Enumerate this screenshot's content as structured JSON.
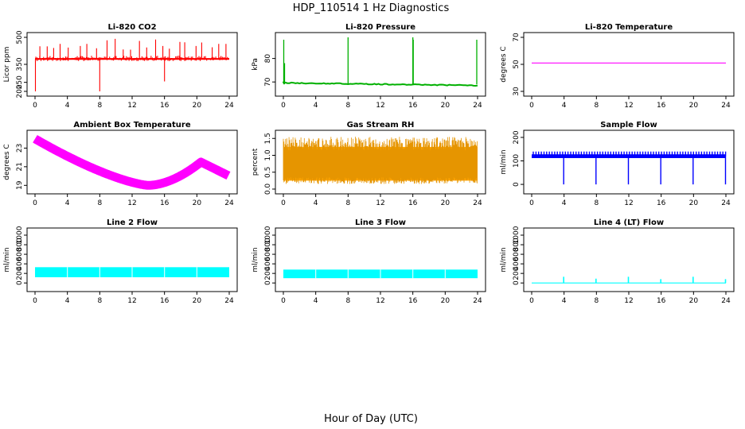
{
  "page": {
    "title": "HDP_110514  1 Hz Diagnostics",
    "xlabel": "Hour of Day (UTC)"
  },
  "chart_data": [
    {
      "type": "line",
      "title": "Li-820 CO2",
      "ylabel": "Licor ppm",
      "color": "#ff0000",
      "xlim": [
        0,
        24
      ],
      "xticks": [
        0,
        4,
        8,
        12,
        16,
        20,
        24
      ],
      "ylim": [
        200,
        500
      ],
      "yticks": [
        200,
        250,
        350,
        500
      ],
      "ytick_labels": [
        "200",
        "250",
        "350",
        "500"
      ],
      "pattern": "co2",
      "series_desc": "baseline ~380 ppm with periodic spikes to ~490 and dips to ~200 at 0, 8, 16 h"
    },
    {
      "type": "line",
      "title": "Li-820 Pressure",
      "ylabel": "kPa",
      "color": "#00b000",
      "xlim": [
        0,
        24
      ],
      "xticks": [
        0,
        4,
        8,
        12,
        16,
        20,
        24
      ],
      "ylim": [
        66,
        89
      ],
      "yticks": [
        70,
        80
      ],
      "ytick_labels": [
        "70",
        "80"
      ],
      "pattern": "pressure",
      "series_desc": "slow decline ~69.5 to ~68.5 kPa with spikes to ~88 at 0, 8, 16, 24 h"
    },
    {
      "type": "line",
      "title": "Li-820 Temperature",
      "ylabel": "degrees C",
      "color": "#ff00ff",
      "xlim": [
        0,
        24
      ],
      "xticks": [
        0,
        4,
        8,
        12,
        16,
        20,
        24
      ],
      "ylim": [
        30,
        70
      ],
      "yticks": [
        30,
        50,
        70
      ],
      "ytick_labels": [
        "30",
        "50",
        "70"
      ],
      "pattern": "flat",
      "value": 51
    },
    {
      "type": "line",
      "title": "Ambient Box Temperature",
      "ylabel": "degrees C",
      "color": "#ff00ff",
      "xlim": [
        0,
        24
      ],
      "xticks": [
        0,
        4,
        8,
        12,
        16,
        20,
        24
      ],
      "ylim": [
        18.6,
        24.4
      ],
      "yticks": [
        19,
        21,
        23
      ],
      "ytick_labels": [
        "19",
        "21",
        "23"
      ],
      "pattern": "ambient",
      "series_desc": "24 at 0 h, falling to 19 near 14 h, peak 21.5 near 20.5 h, 20 at 24 h"
    },
    {
      "type": "line",
      "title": "Gas Stream RH",
      "ylabel": "percent",
      "color": "#ffa500",
      "xlim": [
        0,
        24
      ],
      "xticks": [
        0,
        4,
        8,
        12,
        16,
        20,
        24
      ],
      "ylim": [
        0,
        1.6
      ],
      "yticks": [
        0,
        0.5,
        1.0,
        1.5
      ],
      "ytick_labels": [
        "0.0",
        "0.5",
        "1.0",
        "1.5"
      ],
      "pattern": "rh",
      "series_desc": "noisy band between ~0.2 and ~1.5 percent"
    },
    {
      "type": "line",
      "title": "Sample Flow",
      "ylabel": "ml/min",
      "color": "#0000ff",
      "xlim": [
        0,
        24
      ],
      "xticks": [
        0,
        4,
        8,
        12,
        16,
        20,
        24
      ],
      "ylim": [
        -20,
        210
      ],
      "yticks": [
        0,
        100,
        200
      ],
      "ytick_labels": [
        "0",
        "100",
        "200"
      ],
      "pattern": "sample",
      "series_desc": "~120 ml/min with dips to 0 every 4 h"
    },
    {
      "type": "line",
      "title": "Line 2 Flow",
      "ylabel": "ml/min",
      "color": "#00ffff",
      "xlim": [
        0,
        24
      ],
      "xticks": [
        0,
        4,
        8,
        12,
        16,
        20,
        24
      ],
      "ylim": [
        -80,
        1050
      ],
      "yticks": [
        0,
        200,
        400,
        600,
        800,
        1000
      ],
      "ytick_labels": [
        "0",
        "200",
        "400",
        "600",
        "800",
        "1000"
      ],
      "pattern": "band",
      "band": [
        120,
        330
      ]
    },
    {
      "type": "line",
      "title": "Line 3 Flow",
      "ylabel": "ml/min",
      "color": "#00ffff",
      "xlim": [
        0,
        24
      ],
      "xticks": [
        0,
        4,
        8,
        12,
        16,
        20,
        24
      ],
      "ylim": [
        -80,
        1050
      ],
      "yticks": [
        0,
        200,
        400,
        600,
        800,
        1000
      ],
      "ytick_labels": [
        "0",
        "200",
        "400",
        "600",
        "800",
        "1000"
      ],
      "pattern": "band",
      "band": [
        100,
        280
      ]
    },
    {
      "type": "line",
      "title": "Line 4 (LT) Flow",
      "ylabel": "ml/min",
      "color": "#00ffff",
      "xlim": [
        0,
        24
      ],
      "xticks": [
        0,
        4,
        8,
        12,
        16,
        20,
        24
      ],
      "ylim": [
        -80,
        1050
      ],
      "yticks": [
        0,
        200,
        400,
        600,
        800,
        1000
      ],
      "ytick_labels": [
        "0",
        "200",
        "400",
        "600",
        "800",
        "1000"
      ],
      "pattern": "spikes",
      "series_desc": "~0 ml/min with small spikes (~120) at 4, 8, 12, 16, 20, 24 h"
    }
  ]
}
